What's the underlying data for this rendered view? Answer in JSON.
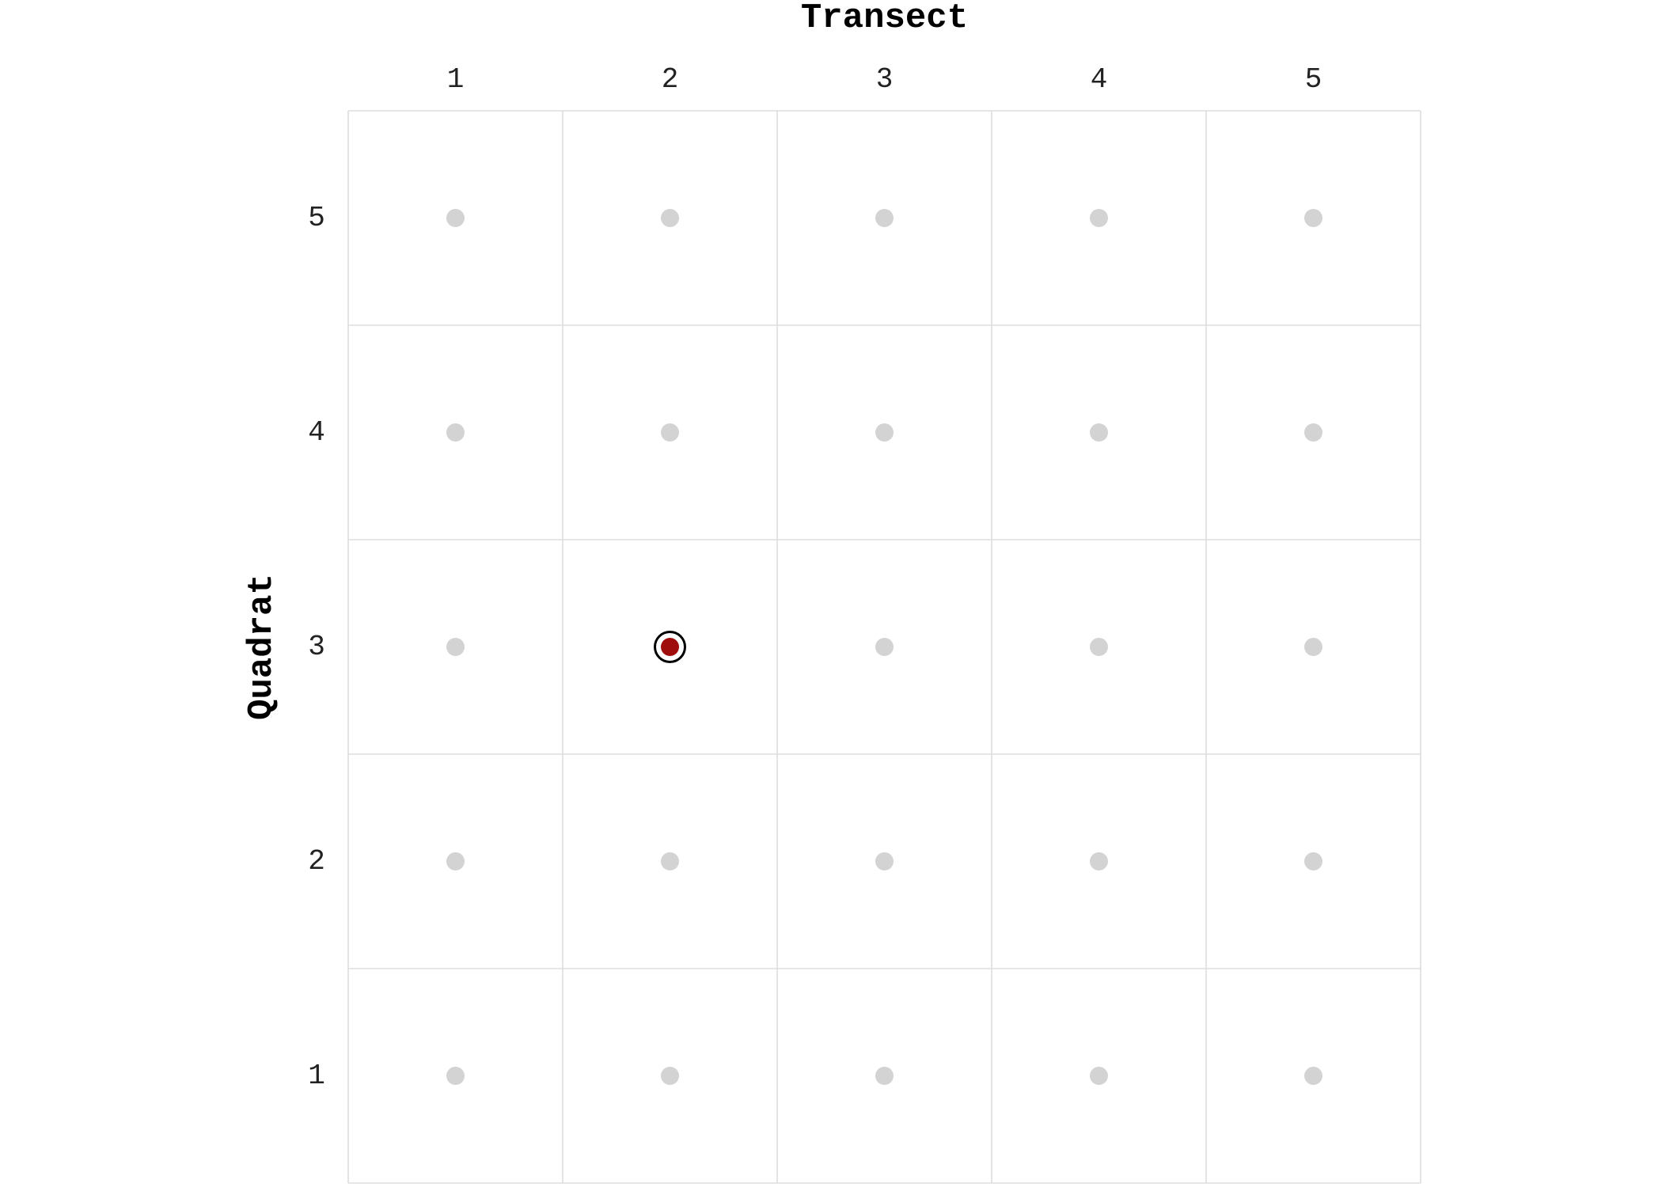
{
  "chart_data": {
    "type": "scatter",
    "title": "",
    "xlabel": "Transect",
    "ylabel": "Quadrat",
    "x_axis_position": "top",
    "x_categories": [
      "1",
      "2",
      "3",
      "4",
      "5"
    ],
    "y_categories": [
      "1",
      "2",
      "3",
      "4",
      "5"
    ],
    "grid": true,
    "legend": "none",
    "series": [
      {
        "role": "background",
        "color": "#d3d3d3",
        "points": [
          {
            "x": 1,
            "y": 1
          },
          {
            "x": 2,
            "y": 1
          },
          {
            "x": 3,
            "y": 1
          },
          {
            "x": 4,
            "y": 1
          },
          {
            "x": 5,
            "y": 1
          },
          {
            "x": 1,
            "y": 2
          },
          {
            "x": 2,
            "y": 2
          },
          {
            "x": 3,
            "y": 2
          },
          {
            "x": 4,
            "y": 2
          },
          {
            "x": 5,
            "y": 2
          },
          {
            "x": 1,
            "y": 3
          },
          {
            "x": 3,
            "y": 3
          },
          {
            "x": 4,
            "y": 3
          },
          {
            "x": 5,
            "y": 3
          },
          {
            "x": 1,
            "y": 4
          },
          {
            "x": 2,
            "y": 4
          },
          {
            "x": 3,
            "y": 4
          },
          {
            "x": 4,
            "y": 4
          },
          {
            "x": 5,
            "y": 4
          },
          {
            "x": 1,
            "y": 5
          },
          {
            "x": 2,
            "y": 5
          },
          {
            "x": 3,
            "y": 5
          },
          {
            "x": 4,
            "y": 5
          },
          {
            "x": 5,
            "y": 5
          }
        ]
      },
      {
        "role": "highlight",
        "color": "#a00d0d",
        "ring_color": "#000000",
        "points": [
          {
            "x": 2,
            "y": 3
          }
        ]
      }
    ]
  }
}
